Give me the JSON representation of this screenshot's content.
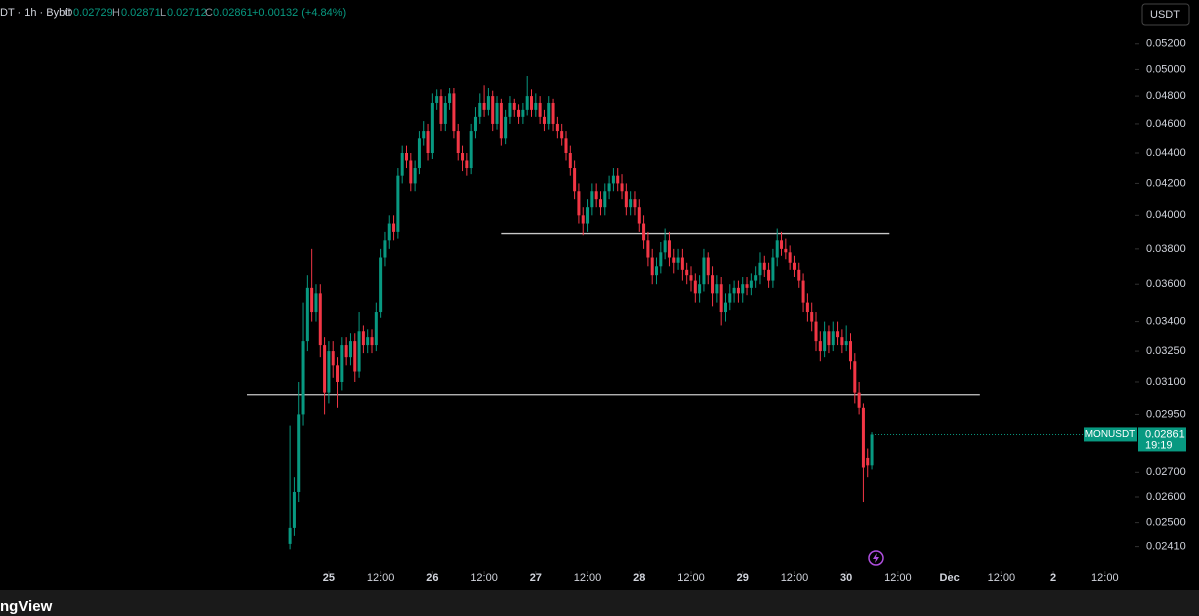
{
  "header": {
    "symbol": "DT · 1h · Bybit",
    "o_label": "O",
    "o": "0.02729",
    "h_label": "H",
    "h": "0.02871",
    "l_label": "L",
    "l": "0.02712",
    "c_label": "C",
    "c": "0.02861",
    "change": "+0.00132 (+4.84%)",
    "currency_button": "USDT",
    "logo": "ngView"
  },
  "chart_data": {
    "type": "candlestick",
    "log_scale": true,
    "up_color": "#089981",
    "down_color": "#f23645",
    "level_color": "#c8c8c8",
    "x": [
      -9,
      -8,
      -7,
      -6,
      -5,
      -4,
      -3,
      -2,
      -1,
      0,
      1,
      2,
      3,
      4,
      5,
      6,
      7,
      8,
      9,
      10,
      11,
      12,
      13,
      14,
      15,
      16,
      17,
      18,
      19,
      20,
      21,
      22,
      23,
      24,
      25,
      26,
      27,
      28,
      29,
      30,
      31,
      32,
      33,
      34,
      35,
      36,
      37,
      38,
      39,
      40,
      41,
      42,
      43,
      44,
      45,
      46,
      47,
      48,
      49,
      50,
      51,
      52,
      53,
      54,
      55,
      56,
      57,
      58,
      59,
      60,
      61,
      62,
      63,
      64,
      65,
      66,
      67,
      68,
      69,
      70,
      71,
      72,
      73,
      74,
      75,
      76,
      77,
      78,
      79,
      80,
      81,
      82,
      83,
      84,
      85,
      86,
      87,
      88,
      89,
      90,
      91,
      92,
      93,
      94,
      95,
      96,
      97,
      98,
      99,
      100,
      101,
      102,
      103,
      104,
      105,
      106,
      107,
      108,
      109,
      110,
      111,
      112,
      113,
      114,
      115,
      116,
      117,
      118,
      119,
      120,
      121,
      122,
      123,
      124,
      125,
      126
    ],
    "open": [
      0.0242,
      0.0248,
      0.0262,
      0.0295,
      0.033,
      0.0358,
      0.0345,
      0.0355,
      0.0328,
      0.0305,
      0.0325,
      0.0318,
      0.031,
      0.0328,
      0.0322,
      0.033,
      0.0315,
      0.0335,
      0.0328,
      0.0332,
      0.0328,
      0.0345,
      0.0375,
      0.0385,
      0.0395,
      0.039,
      0.0425,
      0.044,
      0.0435,
      0.042,
      0.043,
      0.045,
      0.0455,
      0.044,
      0.0475,
      0.048,
      0.046,
      0.0475,
      0.0482,
      0.0455,
      0.044,
      0.0435,
      0.043,
      0.0455,
      0.0465,
      0.0475,
      0.047,
      0.048,
      0.046,
      0.0475,
      0.045,
      0.0465,
      0.0475,
      0.047,
      0.0465,
      0.047,
      0.048,
      0.047,
      0.0475,
      0.0465,
      0.046,
      0.0475,
      0.046,
      0.0455,
      0.045,
      0.044,
      0.043,
      0.0415,
      0.04,
      0.0395,
      0.0405,
      0.0415,
      0.041,
      0.0405,
      0.0415,
      0.042,
      0.0425,
      0.042,
      0.0415,
      0.0405,
      0.041,
      0.0405,
      0.0395,
      0.0385,
      0.0375,
      0.0365,
      0.037,
      0.0378,
      0.0385,
      0.0375,
      0.0372,
      0.0375,
      0.0368,
      0.0365,
      0.0362,
      0.0355,
      0.036,
      0.0375,
      0.0365,
      0.0355,
      0.036,
      0.0345,
      0.035,
      0.0355,
      0.0358,
      0.0355,
      0.036,
      0.0358,
      0.0362,
      0.0365,
      0.0372,
      0.0368,
      0.0362,
      0.0375,
      0.0385,
      0.038,
      0.0378,
      0.0372,
      0.0368,
      0.0362,
      0.035,
      0.0345,
      0.034,
      0.033,
      0.0325,
      0.0335,
      0.0328,
      0.0335,
      0.0332,
      0.0328,
      0.033,
      0.032,
      0.0305,
      0.0298,
      0.0276,
      0.02729
    ],
    "high": [
      0.029,
      0.0268,
      0.031,
      0.035,
      0.0365,
      0.038,
      0.036,
      0.036,
      0.0332,
      0.033,
      0.033,
      0.0322,
      0.0332,
      0.0332,
      0.0334,
      0.0334,
      0.0345,
      0.0338,
      0.0336,
      0.0336,
      0.035,
      0.038,
      0.039,
      0.04,
      0.04,
      0.043,
      0.0445,
      0.0445,
      0.044,
      0.0435,
      0.0455,
      0.0462,
      0.046,
      0.0482,
      0.0485,
      0.0485,
      0.048,
      0.0486,
      0.0486,
      0.046,
      0.0445,
      0.044,
      0.046,
      0.0472,
      0.0482,
      0.0488,
      0.0486,
      0.0484,
      0.048,
      0.0478,
      0.047,
      0.048,
      0.0478,
      0.0474,
      0.0475,
      0.0495,
      0.0485,
      0.0482,
      0.048,
      0.047,
      0.048,
      0.0478,
      0.0465,
      0.046,
      0.0455,
      0.0445,
      0.0435,
      0.042,
      0.0405,
      0.041,
      0.042,
      0.042,
      0.0415,
      0.042,
      0.0425,
      0.043,
      0.043,
      0.0426,
      0.042,
      0.0415,
      0.0415,
      0.041,
      0.04,
      0.039,
      0.038,
      0.0375,
      0.0384,
      0.0392,
      0.039,
      0.038,
      0.038,
      0.038,
      0.0372,
      0.037,
      0.0366,
      0.0365,
      0.038,
      0.0378,
      0.037,
      0.0365,
      0.0364,
      0.0355,
      0.036,
      0.0362,
      0.0362,
      0.0364,
      0.0364,
      0.0366,
      0.037,
      0.0378,
      0.0376,
      0.0372,
      0.038,
      0.0392,
      0.039,
      0.0386,
      0.0382,
      0.0376,
      0.0372,
      0.0366,
      0.0355,
      0.035,
      0.0345,
      0.0335,
      0.034,
      0.0338,
      0.034,
      0.034,
      0.0336,
      0.0338,
      0.0334,
      0.0324,
      0.031,
      0.03,
      0.028,
      0.02871
    ],
    "low": [
      0.024,
      0.0245,
      0.0258,
      0.029,
      0.0325,
      0.034,
      0.034,
      0.0322,
      0.0295,
      0.03,
      0.0312,
      0.0298,
      0.0306,
      0.0318,
      0.0318,
      0.031,
      0.0312,
      0.0324,
      0.0324,
      0.0324,
      0.0325,
      0.0342,
      0.037,
      0.038,
      0.0385,
      0.0386,
      0.042,
      0.043,
      0.0415,
      0.0415,
      0.0426,
      0.0445,
      0.0435,
      0.0436,
      0.047,
      0.0455,
      0.0455,
      0.047,
      0.045,
      0.0435,
      0.0428,
      0.0425,
      0.0426,
      0.045,
      0.046,
      0.0465,
      0.0466,
      0.0455,
      0.0456,
      0.0445,
      0.0446,
      0.046,
      0.0465,
      0.046,
      0.046,
      0.0466,
      0.0465,
      0.0465,
      0.046,
      0.0455,
      0.0456,
      0.0455,
      0.045,
      0.0445,
      0.0435,
      0.0425,
      0.041,
      0.0395,
      0.0388,
      0.039,
      0.04,
      0.0405,
      0.04,
      0.04,
      0.041,
      0.0415,
      0.0415,
      0.041,
      0.04,
      0.04,
      0.04,
      0.039,
      0.038,
      0.037,
      0.036,
      0.036,
      0.0366,
      0.0374,
      0.037,
      0.0366,
      0.0368,
      0.0362,
      0.036,
      0.0356,
      0.035,
      0.035,
      0.0356,
      0.036,
      0.0348,
      0.035,
      0.0338,
      0.034,
      0.0346,
      0.035,
      0.035,
      0.035,
      0.0354,
      0.0354,
      0.0358,
      0.036,
      0.0364,
      0.0358,
      0.0358,
      0.037,
      0.0376,
      0.0374,
      0.0368,
      0.0364,
      0.0358,
      0.0345,
      0.034,
      0.0335,
      0.0325,
      0.032,
      0.0322,
      0.0324,
      0.0325,
      0.0328,
      0.0324,
      0.0325,
      0.0316,
      0.03,
      0.0295,
      0.0258,
      0.0268,
      0.02712
    ],
    "close": [
      0.0248,
      0.0262,
      0.0295,
      0.033,
      0.0358,
      0.0345,
      0.0355,
      0.0328,
      0.0305,
      0.0325,
      0.0318,
      0.031,
      0.0328,
      0.0322,
      0.033,
      0.0315,
      0.0335,
      0.0328,
      0.0332,
      0.0328,
      0.0345,
      0.0375,
      0.0385,
      0.0395,
      0.039,
      0.0425,
      0.044,
      0.0435,
      0.042,
      0.043,
      0.045,
      0.0455,
      0.044,
      0.0475,
      0.048,
      0.046,
      0.0475,
      0.0482,
      0.0455,
      0.044,
      0.0435,
      0.043,
      0.0455,
      0.0465,
      0.0475,
      0.047,
      0.048,
      0.046,
      0.0475,
      0.045,
      0.0465,
      0.0475,
      0.047,
      0.0465,
      0.047,
      0.048,
      0.047,
      0.0475,
      0.0465,
      0.046,
      0.0475,
      0.046,
      0.0455,
      0.045,
      0.044,
      0.043,
      0.0415,
      0.04,
      0.0395,
      0.0405,
      0.0415,
      0.041,
      0.0405,
      0.0415,
      0.042,
      0.0425,
      0.042,
      0.0415,
      0.0405,
      0.041,
      0.0405,
      0.0395,
      0.0385,
      0.0375,
      0.0365,
      0.037,
      0.0378,
      0.0385,
      0.0375,
      0.0372,
      0.0375,
      0.0368,
      0.0365,
      0.0362,
      0.0355,
      0.036,
      0.0375,
      0.0365,
      0.0355,
      0.036,
      0.0345,
      0.035,
      0.0355,
      0.0358,
      0.0355,
      0.036,
      0.0358,
      0.0362,
      0.0365,
      0.0372,
      0.0368,
      0.0362,
      0.0375,
      0.0385,
      0.038,
      0.0378,
      0.0372,
      0.0368,
      0.0362,
      0.035,
      0.0345,
      0.034,
      0.033,
      0.0325,
      0.0335,
      0.0328,
      0.0335,
      0.0332,
      0.0328,
      0.033,
      0.032,
      0.0305,
      0.0298,
      0.0272,
      0.02729,
      0.02861
    ],
    "levels": [
      {
        "value": 0.0389,
        "from": 40,
        "to": 130
      },
      {
        "value": 0.0304,
        "from": -19,
        "to": 151
      }
    ],
    "price_label": {
      "symbol": "MONUSDT",
      "price": "0.02861",
      "countdown": "19:19"
    },
    "xlim": [
      -76.3,
      187
    ],
    "xticks": [
      {
        "value": 0,
        "label": "25"
      },
      {
        "value": 12,
        "label": "12:00"
      },
      {
        "value": 24,
        "label": "26"
      },
      {
        "value": 36,
        "label": "12:00"
      },
      {
        "value": 48,
        "label": "27"
      },
      {
        "value": 60,
        "label": "12:00"
      },
      {
        "value": 72,
        "label": "28"
      },
      {
        "value": 84,
        "label": "12:00"
      },
      {
        "value": 96,
        "label": "29"
      },
      {
        "value": 108,
        "label": "12:00"
      },
      {
        "value": 120,
        "label": "30"
      },
      {
        "value": 132,
        "label": "12:00"
      },
      {
        "value": 144,
        "label": "Dec"
      },
      {
        "value": 156,
        "label": "12:00"
      },
      {
        "value": 168,
        "label": "2"
      },
      {
        "value": 180,
        "label": "12:00"
      }
    ],
    "ylim": [
      0.02336,
      0.0556
    ],
    "yticks": [
      {
        "value": 0.052,
        "label": "0.05200"
      },
      {
        "value": 0.05,
        "label": "0.05000"
      },
      {
        "value": 0.048,
        "label": "0.04800"
      },
      {
        "value": 0.046,
        "label": "0.04600"
      },
      {
        "value": 0.044,
        "label": "0.04400"
      },
      {
        "value": 0.042,
        "label": "0.04200"
      },
      {
        "value": 0.04,
        "label": "0.04000"
      },
      {
        "value": 0.038,
        "label": "0.03800"
      },
      {
        "value": 0.036,
        "label": "0.03600"
      },
      {
        "value": 0.034,
        "label": "0.03400"
      },
      {
        "value": 0.0325,
        "label": "0.03250"
      },
      {
        "value": 0.031,
        "label": "0.03100"
      },
      {
        "value": 0.0295,
        "label": "0.02950"
      },
      {
        "value": 0.027,
        "label": "0.02700"
      },
      {
        "value": 0.026,
        "label": "0.02600"
      },
      {
        "value": 0.025,
        "label": "0.02500"
      },
      {
        "value": 0.0241,
        "label": "0.02410"
      }
    ]
  }
}
